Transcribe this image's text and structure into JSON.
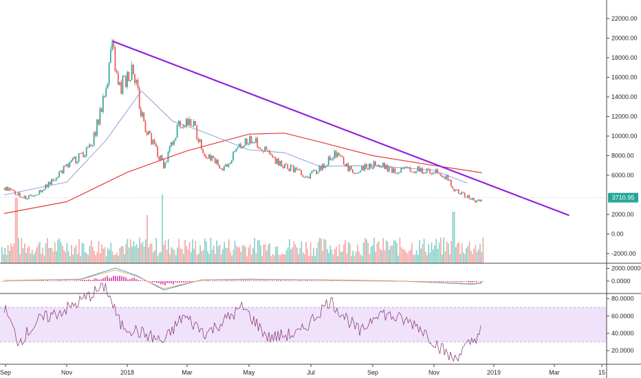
{
  "chart_data": [
    {
      "type": "candlestick",
      "panel": "price",
      "y_ticks": [
        "22000.00",
        "20000.00",
        "18000.00",
        "16000.00",
        "14000.00",
        "12000.00",
        "10000.00",
        "8000.00",
        "6000.00",
        "2000.00",
        "0.00",
        "-2000.00"
      ],
      "x_ticks": [
        "Sep",
        "Nov",
        "2018",
        "Mar",
        "May",
        "Jul",
        "Sep",
        "Nov",
        "2019",
        "Mar",
        "15"
      ],
      "last_price": "3710.95",
      "ylim": [
        -2700,
        23000
      ],
      "colors": {
        "up": "#26a69a",
        "down": "#ef5350",
        "ma_long": "#e53935",
        "ma_short": "#7986cb",
        "trendline": "#8e24e0",
        "badge": "#26a69a"
      },
      "series": [
        {
          "role": "candles",
          "points": [
            [
              "2017-09-01",
              4700
            ],
            [
              "2017-09-15",
              4000
            ],
            [
              "2017-09-22",
              3700
            ],
            [
              "2017-10-05",
              4300
            ],
            [
              "2017-10-20",
              5800
            ],
            [
              "2017-11-05",
              7300
            ],
            [
              "2017-11-25",
              8800
            ],
            [
              "2017-12-07",
              13500
            ],
            [
              "2017-12-17",
              19300
            ],
            [
              "2017-12-22",
              14500
            ],
            [
              "2018-01-06",
              17000
            ],
            [
              "2018-01-17",
              11000
            ],
            [
              "2018-02-06",
              6900
            ],
            [
              "2018-02-20",
              11200
            ],
            [
              "2018-03-05",
              11500
            ],
            [
              "2018-03-18",
              8200
            ],
            [
              "2018-04-06",
              6700
            ],
            [
              "2018-04-24",
              9300
            ],
            [
              "2018-05-05",
              9800
            ],
            [
              "2018-05-25",
              7500
            ],
            [
              "2018-06-10",
              6700
            ],
            [
              "2018-06-28",
              5900
            ],
            [
              "2018-07-10",
              6700
            ],
            [
              "2018-07-25",
              8300
            ],
            [
              "2018-08-10",
              6400
            ],
            [
              "2018-08-30",
              7000
            ],
            [
              "2018-09-05",
              7300
            ],
            [
              "2018-09-20",
              6400
            ],
            [
              "2018-10-10",
              6600
            ],
            [
              "2018-11-05",
              6400
            ],
            [
              "2018-11-15",
              5600
            ],
            [
              "2018-11-22",
              4400
            ],
            [
              "2018-12-05",
              3800
            ],
            [
              "2018-12-15",
              3300
            ],
            [
              "2018-12-20",
              3700
            ]
          ]
        },
        {
          "role": "ma_long",
          "points": [
            [
              "2017-09-01",
              2100
            ],
            [
              "2017-11-01",
              3300
            ],
            [
              "2018-01-01",
              6300
            ],
            [
              "2018-03-01",
              8500
            ],
            [
              "2018-05-01",
              10200
            ],
            [
              "2018-06-05",
              10300
            ],
            [
              "2018-07-10",
              9400
            ],
            [
              "2018-09-01",
              8000
            ],
            [
              "2018-11-01",
              7000
            ],
            [
              "2018-12-20",
              6250
            ]
          ]
        },
        {
          "role": "ma_short",
          "points": [
            [
              "2017-09-01",
              4000
            ],
            [
              "2017-11-01",
              5300
            ],
            [
              "2017-12-10",
              9500
            ],
            [
              "2018-01-15",
              14600
            ],
            [
              "2018-02-15",
              11500
            ],
            [
              "2018-03-15",
              10500
            ],
            [
              "2018-05-01",
              8600
            ],
            [
              "2018-06-05",
              8300
            ],
            [
              "2018-07-10",
              6900
            ],
            [
              "2018-09-01",
              7000
            ],
            [
              "2018-11-01",
              6500
            ],
            [
              "2018-12-05",
              5200
            ]
          ]
        },
        {
          "role": "trendline",
          "points": [
            [
              "2017-12-17",
              19700
            ],
            [
              "2019-03-15",
              1900
            ]
          ]
        }
      ],
      "volume": {
        "note": "relative bars",
        "spikes": [
          [
            "2017-09-15",
            0.95
          ],
          [
            "2018-02-06",
            1.0
          ],
          [
            "2018-01-22",
            0.7
          ],
          [
            "2018-11-20",
            0.75
          ]
        ]
      }
    },
    {
      "type": "line",
      "panel": "macd",
      "y_ticks": [
        "2000.0000",
        "0.0000"
      ],
      "series": [
        {
          "role": "macd",
          "points": [
            [
              "2017-09-01",
              100
            ],
            [
              "2017-11-15",
              300
            ],
            [
              "2017-12-20",
              2050
            ],
            [
              "2018-01-10",
              900
            ],
            [
              "2018-02-06",
              -1400
            ],
            [
              "2018-03-15",
              200
            ],
            [
              "2018-05-01",
              300
            ],
            [
              "2018-07-15",
              200
            ],
            [
              "2018-10-01",
              0
            ],
            [
              "2018-12-10",
              -500
            ],
            [
              "2018-12-20",
              -300
            ]
          ]
        }
      ]
    },
    {
      "type": "line",
      "panel": "rsi",
      "y_ticks": [
        "80.0000",
        "60.0000",
        "40.0000",
        "20.0000"
      ],
      "band": [
        30,
        70
      ],
      "series": [
        {
          "role": "rsi",
          "points": [
            [
              "2017-09-01",
              70
            ],
            [
              "2017-09-15",
              30
            ],
            [
              "2017-10-05",
              55
            ],
            [
              "2017-11-05",
              70
            ],
            [
              "2017-12-10",
              95
            ],
            [
              "2017-12-25",
              50
            ],
            [
              "2018-02-06",
              30
            ],
            [
              "2018-02-25",
              60
            ],
            [
              "2018-03-20",
              40
            ],
            [
              "2018-04-25",
              70
            ],
            [
              "2018-05-20",
              35
            ],
            [
              "2018-06-20",
              40
            ],
            [
              "2018-07-20",
              78
            ],
            [
              "2018-08-20",
              40
            ],
            [
              "2018-09-05",
              65
            ],
            [
              "2018-10-15",
              50
            ],
            [
              "2018-11-20",
              10
            ],
            [
              "2018-12-10",
              30
            ],
            [
              "2018-12-20",
              45
            ]
          ]
        }
      ]
    }
  ]
}
